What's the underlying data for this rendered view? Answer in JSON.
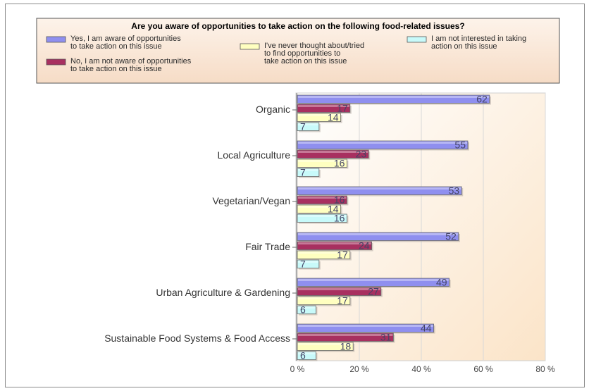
{
  "chart_data": {
    "type": "bar",
    "orientation": "horizontal",
    "title": "Are you aware of opportunities to take action on the following food-related issues?",
    "categories": [
      "Organic",
      "Local Agriculture",
      "Vegetarian/Vegan",
      "Fair Trade",
      "Urban Agriculture & Gardening",
      "Sustainable Food Systems & Food Access"
    ],
    "series": [
      {
        "name": "Yes, I am aware of opportunities to take action on this issue",
        "legend_lines": [
          "Yes, I am aware of opportunities",
          "to take action on this issue"
        ],
        "color": "#8f8fef",
        "values": [
          62,
          55,
          53,
          52,
          49,
          44
        ]
      },
      {
        "name": "No, I am not aware of opportunities to take action on this issue",
        "legend_lines": [
          "No, I am not aware of opportunities",
          "to take action on this issue"
        ],
        "color": "#a83060",
        "values": [
          17,
          23,
          16,
          24,
          27,
          31
        ]
      },
      {
        "name": "I've never thought about/tried to find opportunities to take action on this issue",
        "legend_lines": [
          "I've never thought about/tried",
          "to find opportunities to",
          "take action on this issue"
        ],
        "color": "#ffffc0",
        "values": [
          14,
          16,
          14,
          17,
          17,
          18
        ]
      },
      {
        "name": "I am not interested in taking action on this issue",
        "legend_lines": [
          "I am not interested in taking",
          "action on this issue"
        ],
        "color": "#c8fafa",
        "values": [
          7,
          7,
          16,
          7,
          6,
          6
        ]
      }
    ],
    "xlim": [
      0,
      80
    ],
    "xticks": [
      "0 %",
      "20 %",
      "40 %",
      "60 %",
      "80 %"
    ],
    "xlabel": "",
    "ylabel": "",
    "grid": true,
    "legend_position": "top"
  }
}
